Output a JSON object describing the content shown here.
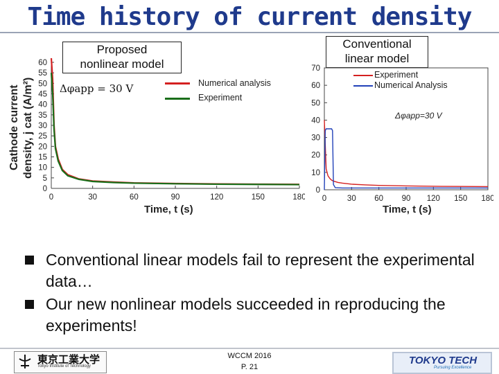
{
  "slide": {
    "title": "Time history of current density",
    "bullets": [
      "Conventional linear models fail to represent the experimental data…",
      "Our new nonlinear models succeeded in reproducing the experiments!"
    ]
  },
  "left_panel": {
    "box_label_line1": "Proposed",
    "box_label_line2": "nonlinear model",
    "condition": "Δφapp = 30 V",
    "legend": [
      "Numerical analysis",
      "Experiment"
    ],
    "ylabel_line1": "Cathode current",
    "ylabel_line2": "density, j cat (A/m²)",
    "xlabel": "Time, t (s)"
  },
  "right_panel": {
    "box_label_line1": "Conventional",
    "box_label_line2": "linear model",
    "condition": "Δφapp=30 V",
    "legend": [
      "Experiment",
      "Numerical Analysis"
    ],
    "xlabel": "Time, t (s)"
  },
  "footer": {
    "university": "東京工業大学",
    "university_sub": "Tokyo Institute of Technology",
    "conference": "WCCM 2016",
    "page": "P. 21",
    "logo_text": "TOKYO TECH",
    "logo_sub": "Pursuing Excellence"
  },
  "chart_data": [
    {
      "type": "line",
      "xlim": [
        0,
        180
      ],
      "ylim": [
        0,
        60
      ],
      "x_ticks": [
        0,
        30,
        60,
        90,
        120,
        150,
        180
      ],
      "y_ticks": [
        0,
        5,
        10,
        15,
        20,
        25,
        30,
        35,
        40,
        45,
        50,
        55,
        60
      ],
      "series": [
        {
          "name": "Numerical analysis",
          "color": "#d42020",
          "x": [
            0,
            1,
            2,
            3,
            5,
            8,
            12,
            20,
            30,
            45,
            60,
            90,
            120,
            150,
            180
          ],
          "y": [
            62,
            52,
            30,
            20,
            14,
            9,
            6.5,
            4.5,
            3.5,
            3,
            2.6,
            2.3,
            2.1,
            2,
            1.9
          ]
        },
        {
          "name": "Experiment",
          "color": "#1a6e1a",
          "x": [
            0,
            1,
            2,
            3,
            5,
            8,
            12,
            20,
            30,
            45,
            60,
            90,
            120,
            150,
            180
          ],
          "y": [
            55,
            45,
            28,
            19,
            13,
            8.5,
            6,
            4.3,
            3.3,
            2.8,
            2.5,
            2.2,
            2,
            1.9,
            1.8
          ]
        }
      ]
    },
    {
      "type": "line",
      "xlim": [
        0,
        180
      ],
      "ylim": [
        0,
        70
      ],
      "x_ticks": [
        0,
        30,
        60,
        90,
        120,
        150,
        180
      ],
      "y_ticks": [
        0,
        10,
        20,
        30,
        40,
        50,
        60,
        70
      ],
      "series": [
        {
          "name": "Experiment",
          "color": "#d42020",
          "x": [
            0,
            2,
            4,
            6,
            8,
            10,
            15,
            20,
            30,
            45,
            60,
            90,
            120,
            150,
            180
          ],
          "y": [
            40,
            12,
            8,
            6.5,
            5.5,
            5,
            4.2,
            3.8,
            3.2,
            2.8,
            2.5,
            2.2,
            2,
            1.9,
            1.8
          ]
        },
        {
          "name": "Numerical Analysis",
          "color": "#2040b8",
          "x": [
            0,
            1,
            2,
            3,
            4,
            6,
            8,
            9,
            10,
            12,
            20,
            30,
            60,
            90,
            120,
            150,
            180
          ],
          "y": [
            0,
            34,
            35,
            35,
            35,
            35,
            35,
            34,
            3,
            1.2,
            1,
            1,
            1,
            1,
            1,
            1,
            1
          ]
        }
      ]
    }
  ]
}
